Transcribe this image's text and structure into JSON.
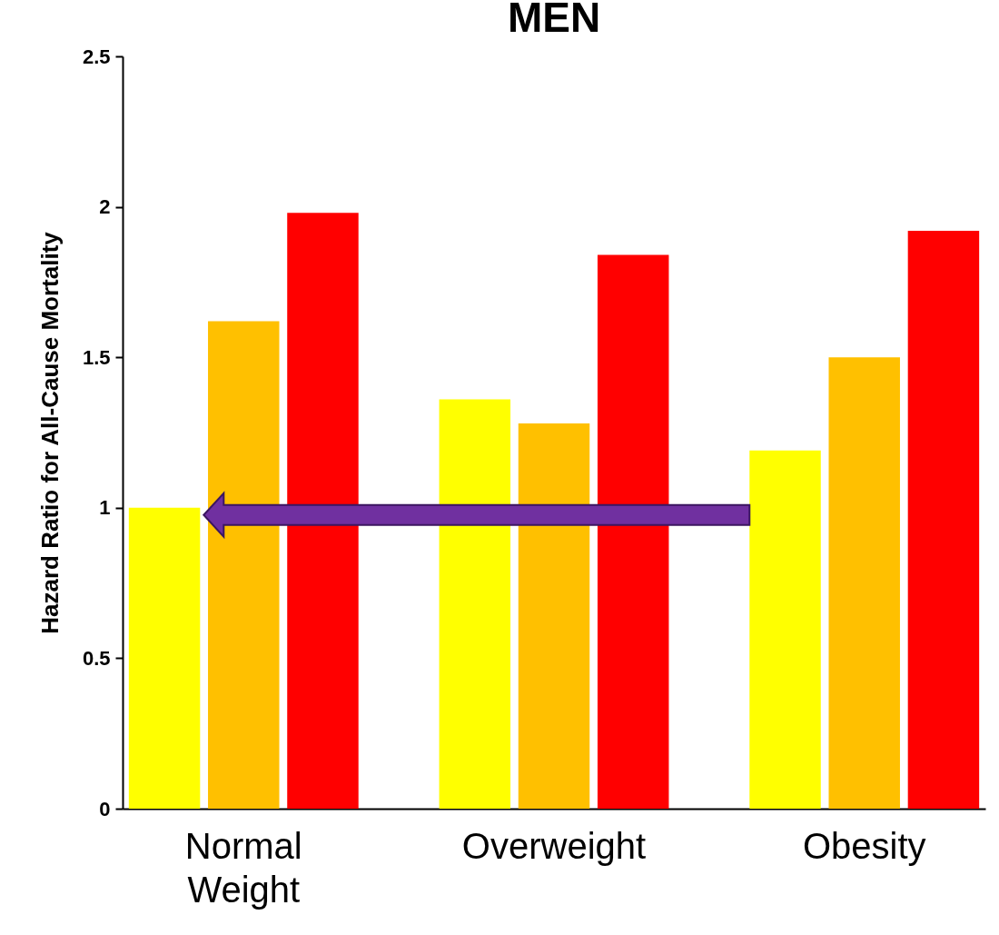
{
  "chart_data": {
    "type": "bar",
    "title": "MEN",
    "ylabel": "Hazard Ratio for All-Cause Mortality",
    "categories": [
      "Normal Weight",
      "Overweight",
      "Obesity"
    ],
    "series": [
      {
        "color": "#ffff00",
        "values": [
          1.0,
          1.36,
          1.19
        ]
      },
      {
        "color": "#ffc000",
        "values": [
          1.62,
          1.28,
          1.5
        ]
      },
      {
        "color": "#ff0000",
        "values": [
          1.98,
          1.84,
          1.92
        ]
      }
    ],
    "ylim": [
      0,
      2.5
    ],
    "yticks": [
      0,
      0.5,
      1,
      1.5,
      2,
      2.5
    ],
    "grid": false,
    "legend": false
  }
}
